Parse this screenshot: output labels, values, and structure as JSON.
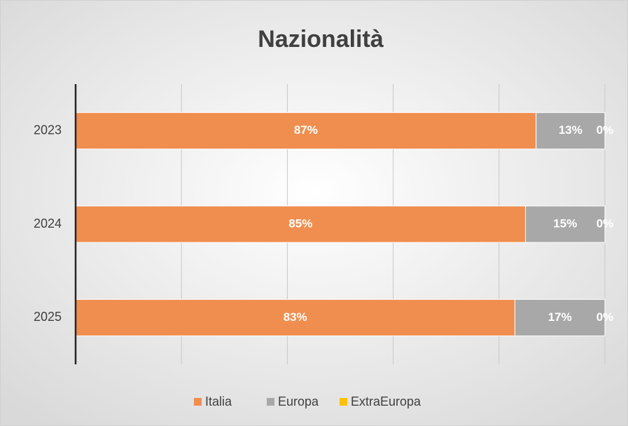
{
  "chart_data": {
    "type": "stacked_bar_horizontal",
    "title": "Nazionalità",
    "categories": [
      "2023",
      "2024",
      "2025"
    ],
    "series": [
      {
        "name": "Italia",
        "color": "#ef8e4e",
        "values": [
          87,
          85,
          83
        ],
        "value_labels": [
          "87%",
          "85%",
          "83%"
        ]
      },
      {
        "name": "Europa",
        "color": "#a8a8a8",
        "values": [
          13,
          15,
          17
        ],
        "value_labels": [
          "13%",
          "15%",
          "17%"
        ]
      },
      {
        "name": "ExtraEuropa",
        "color": "#ffc000",
        "values": [
          0,
          0,
          0
        ],
        "value_labels": [
          "0%",
          "0%",
          "0%"
        ]
      }
    ],
    "xlim": [
      0,
      100
    ],
    "xticks": [
      0,
      20,
      40,
      60,
      80,
      100
    ],
    "grid": true,
    "legend": "bottom"
  }
}
